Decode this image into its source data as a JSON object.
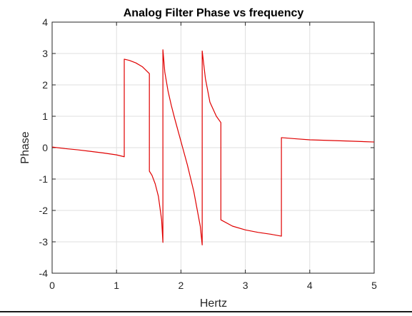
{
  "chart_data": {
    "type": "line",
    "title": "Analog Filter Phase vs frequency",
    "xlabel": "Hertz",
    "ylabel": "Phase",
    "xlim": [
      0,
      5
    ],
    "ylim": [
      -4,
      4
    ],
    "xticks": [
      0,
      1,
      2,
      3,
      4,
      5
    ],
    "yticks": [
      -4,
      -3,
      -2,
      -1,
      0,
      1,
      2,
      3,
      4
    ],
    "grid": true,
    "series": [
      {
        "color": "#e00000",
        "x": [
          0,
          0.2,
          0.4,
          0.6,
          0.8,
          1.0,
          1.12,
          1.12,
          1.2,
          1.3,
          1.4,
          1.5,
          1.51,
          1.51,
          1.55,
          1.6,
          1.65,
          1.7,
          1.72,
          1.72,
          1.75,
          1.8,
          1.85,
          1.9,
          2.0,
          2.1,
          2.2,
          2.3,
          2.33,
          2.33,
          2.38,
          2.45,
          2.55,
          2.62,
          2.62,
          2.8,
          3.0,
          3.2,
          3.4,
          3.56,
          3.56,
          3.8,
          4.0,
          4.3,
          4.6,
          5.0
        ],
        "y": [
          0.02,
          -0.03,
          -0.07,
          -0.12,
          -0.17,
          -0.23,
          -0.29,
          2.82,
          2.78,
          2.7,
          2.58,
          2.38,
          2.36,
          -0.75,
          -0.88,
          -1.15,
          -1.55,
          -2.3,
          -3.02,
          3.12,
          2.4,
          1.8,
          1.35,
          0.95,
          0.2,
          -0.55,
          -1.4,
          -2.5,
          -3.1,
          3.08,
          2.2,
          1.45,
          1.0,
          0.8,
          -2.3,
          -2.5,
          -2.62,
          -2.7,
          -2.76,
          -2.82,
          0.32,
          0.28,
          0.25,
          0.23,
          0.21,
          0.18
        ]
      }
    ]
  }
}
